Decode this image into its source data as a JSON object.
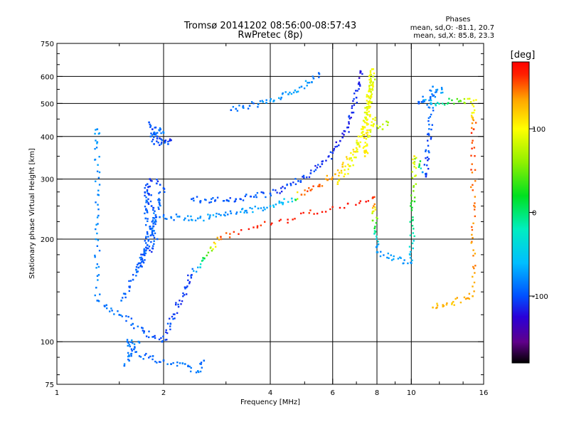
{
  "chart_data": {
    "type": "scatter",
    "title": "Tromsø 20141202 08:56:00-08:57:43",
    "subtitle": "RwPretec (8p)",
    "xlabel": "Frequency [MHz]",
    "ylabel": "Stationary phase Virtual Height [km]",
    "x_scale": "log",
    "y_scale": "log",
    "xlim": [
      1,
      16
    ],
    "ylim": [
      75,
      750
    ],
    "x_ticks": [
      {
        "value": 1,
        "label": "1"
      },
      {
        "value": 2,
        "label": "2"
      },
      {
        "value": 4,
        "label": "4"
      },
      {
        "value": 6,
        "label": "6"
      },
      {
        "value": 8,
        "label": "8"
      },
      {
        "value": 10,
        "label": "10"
      },
      {
        "value": 16,
        "label": "16"
      }
    ],
    "y_ticks": [
      {
        "value": 75,
        "label": "75"
      },
      {
        "value": 100,
        "label": "100"
      },
      {
        "value": 200,
        "label": "200"
      },
      {
        "value": 300,
        "label": "300"
      },
      {
        "value": 400,
        "label": "400"
      },
      {
        "value": 500,
        "label": "500"
      },
      {
        "value": 600,
        "label": "600"
      },
      {
        "value": 750,
        "label": "750"
      }
    ],
    "x_grid": [
      2,
      4,
      6,
      8,
      10
    ],
    "y_grid": [
      100,
      200,
      300,
      400,
      500,
      600
    ],
    "stats": {
      "heading": "Phases",
      "line_o": "mean, sd,O: -81.1, 20.7",
      "line_x": "mean, sd,X:  85.8, 23.3"
    },
    "colorbar": {
      "label": "[deg]",
      "range": [
        -180,
        180
      ],
      "ticks": [
        {
          "value": 100,
          "label": "100"
        },
        {
          "value": 0,
          "label": "0"
        },
        {
          "value": -100,
          "label": "-100"
        }
      ],
      "stops": [
        {
          "value": -180,
          "color": "#000000"
        },
        {
          "value": -155,
          "color": "#60008a"
        },
        {
          "value": -125,
          "color": "#2a00d8"
        },
        {
          "value": -100,
          "color": "#0050ff"
        },
        {
          "value": -60,
          "color": "#00bfff"
        },
        {
          "value": -20,
          "color": "#00eec0"
        },
        {
          "value": 20,
          "color": "#00e020"
        },
        {
          "value": 60,
          "color": "#90f000"
        },
        {
          "value": 100,
          "color": "#ffff00"
        },
        {
          "value": 135,
          "color": "#ffa500"
        },
        {
          "value": 165,
          "color": "#ff2000"
        },
        {
          "value": 180,
          "color": "#ff0000"
        }
      ]
    },
    "series": [
      {
        "points": [
          [
            1.82,
            440,
            -100
          ],
          [
            1.84,
            430,
            -90
          ],
          [
            1.86,
            420,
            -110
          ],
          [
            1.88,
            410,
            -95
          ],
          [
            1.9,
            405,
            -85
          ],
          [
            1.92,
            400,
            -100
          ],
          [
            1.95,
            395,
            -105
          ],
          [
            1.98,
            390,
            -90
          ],
          [
            2.02,
            385,
            -100
          ],
          [
            2.06,
            380,
            -95
          ],
          [
            2.1,
            390,
            -110
          ],
          [
            1.88,
            380,
            -100
          ],
          [
            1.84,
            400,
            -90
          ],
          [
            1.96,
            420,
            -95
          ],
          [
            2.0,
            410,
            -80
          ],
          [
            1.9,
            425,
            -100
          ]
        ]
      },
      {
        "points": [
          [
            3.1,
            478,
            -95
          ],
          [
            3.2,
            482,
            -90
          ],
          [
            3.35,
            488,
            -85
          ],
          [
            3.5,
            492,
            -90
          ],
          [
            3.7,
            497,
            -80
          ],
          [
            3.9,
            502,
            -75
          ],
          [
            4.1,
            510,
            -70
          ],
          [
            4.3,
            520,
            -80
          ],
          [
            4.5,
            532,
            -75
          ],
          [
            4.7,
            546,
            -70
          ],
          [
            4.9,
            560,
            -80
          ],
          [
            5.1,
            575,
            -75
          ],
          [
            5.3,
            592,
            -85
          ],
          [
            5.5,
            610,
            -90
          ]
        ]
      },
      {
        "points": [
          [
            1.52,
            132,
            -85
          ],
          [
            1.56,
            138,
            -90
          ],
          [
            1.6,
            145,
            -100
          ],
          [
            1.64,
            152,
            -95
          ],
          [
            1.68,
            160,
            -90
          ],
          [
            1.72,
            170,
            -95
          ],
          [
            1.76,
            180,
            -100
          ],
          [
            1.8,
            192,
            -95
          ],
          [
            1.84,
            205,
            -100
          ],
          [
            1.87,
            218,
            -90
          ],
          [
            1.9,
            235,
            -95
          ],
          [
            1.85,
            250,
            -100
          ],
          [
            1.82,
            270,
            -105
          ],
          [
            1.8,
            290,
            -100
          ],
          [
            1.78,
            230,
            -90
          ],
          [
            1.92,
            200,
            -95
          ],
          [
            1.86,
            188,
            -100
          ],
          [
            1.74,
            175,
            -105
          ],
          [
            1.7,
            165,
            -95
          ],
          [
            1.95,
            260,
            -90
          ],
          [
            2.0,
            282,
            -100
          ],
          [
            1.83,
            300,
            -110
          ]
        ]
      },
      {
        "points": [
          [
            1.95,
            232,
            -90
          ],
          [
            2.1,
            232,
            -85
          ],
          [
            2.3,
            230,
            -80
          ],
          [
            2.5,
            230,
            -75
          ],
          [
            2.7,
            232,
            -70
          ],
          [
            2.9,
            235,
            -75
          ],
          [
            3.1,
            238,
            -80
          ],
          [
            3.4,
            242,
            -75
          ],
          [
            3.7,
            246,
            -70
          ],
          [
            4.0,
            250,
            -65
          ],
          [
            4.3,
            256,
            -60
          ],
          [
            4.6,
            263,
            -55
          ],
          [
            4.9,
            270,
            150
          ],
          [
            5.2,
            278,
            155
          ],
          [
            5.5,
            288,
            145
          ],
          [
            5.8,
            298,
            140
          ],
          [
            6.1,
            310,
            130
          ],
          [
            6.4,
            326,
            120
          ],
          [
            6.7,
            345,
            110
          ],
          [
            7.0,
            370,
            105
          ],
          [
            7.2,
            400,
            100
          ],
          [
            7.4,
            440,
            95
          ],
          [
            7.6,
            490,
            90
          ],
          [
            7.7,
            540,
            85
          ],
          [
            7.8,
            600,
            80
          ]
        ]
      },
      {
        "points": [
          [
            2.4,
            262,
            -100
          ],
          [
            2.8,
            260,
            -95
          ],
          [
            3.2,
            262,
            -100
          ],
          [
            3.6,
            266,
            -95
          ],
          [
            4.0,
            272,
            -100
          ],
          [
            4.4,
            282,
            -105
          ],
          [
            4.8,
            296,
            -100
          ],
          [
            5.2,
            312,
            -105
          ],
          [
            5.6,
            332,
            -110
          ],
          [
            6.0,
            358,
            -110
          ],
          [
            6.3,
            388,
            -115
          ],
          [
            6.6,
            425,
            -110
          ],
          [
            6.8,
            470,
            -115
          ],
          [
            7.0,
            520,
            -110
          ],
          [
            7.1,
            570,
            -115
          ],
          [
            7.2,
            620,
            -120
          ]
        ]
      },
      {
        "points": [
          [
            6.2,
            290,
            110
          ],
          [
            6.5,
            310,
            100
          ],
          [
            6.8,
            340,
            95
          ],
          [
            7.1,
            380,
            90
          ],
          [
            7.3,
            420,
            100
          ],
          [
            7.5,
            470,
            95
          ],
          [
            7.6,
            520,
            90
          ],
          [
            7.7,
            580,
            85
          ],
          [
            7.75,
            630,
            95
          ],
          [
            7.4,
            350,
            110
          ],
          [
            7.6,
            400,
            90
          ],
          [
            7.8,
            450,
            95
          ],
          [
            8.0,
            430,
            80
          ],
          [
            8.3,
            420,
            75
          ],
          [
            8.6,
            440,
            70
          ]
        ]
      },
      {
        "points": [
          [
            1.55,
            85,
            -90
          ],
          [
            1.6,
            88,
            -85
          ],
          [
            1.65,
            95,
            -90
          ],
          [
            1.7,
            100,
            -80
          ],
          [
            1.58,
            100,
            -85
          ],
          [
            1.62,
            92,
            -90
          ],
          [
            2.0,
            88,
            -95
          ],
          [
            2.1,
            86,
            -90
          ],
          [
            2.3,
            86,
            -85
          ],
          [
            2.5,
            82,
            -80
          ],
          [
            2.6,
            88,
            -90
          ]
        ]
      },
      {
        "points": [
          [
            1.3,
            420,
            -80
          ],
          [
            1.3,
            385,
            -75
          ],
          [
            1.3,
            132,
            -85
          ],
          [
            1.98,
            100,
            -100
          ],
          [
            2.4,
            157,
            -110
          ],
          [
            2.9,
            203,
            160
          ],
          [
            7.8,
            265,
            175
          ],
          [
            8.0,
            190,
            -80
          ],
          [
            8.0,
            183,
            -75
          ],
          [
            10.0,
            170,
            -75
          ],
          [
            10.2,
            350,
            110
          ],
          [
            11.0,
            305,
            -110
          ],
          [
            11.5,
            560,
            -80
          ],
          [
            12.2,
            550,
            -75
          ],
          [
            10.5,
            500,
            -100
          ],
          [
            15.0,
            510,
            100
          ],
          [
            15.0,
            470,
            100
          ],
          [
            15.0,
            420,
            160
          ],
          [
            14.9,
            136,
            130
          ],
          [
            11.5,
            126,
            125
          ]
        ]
      }
    ]
  }
}
